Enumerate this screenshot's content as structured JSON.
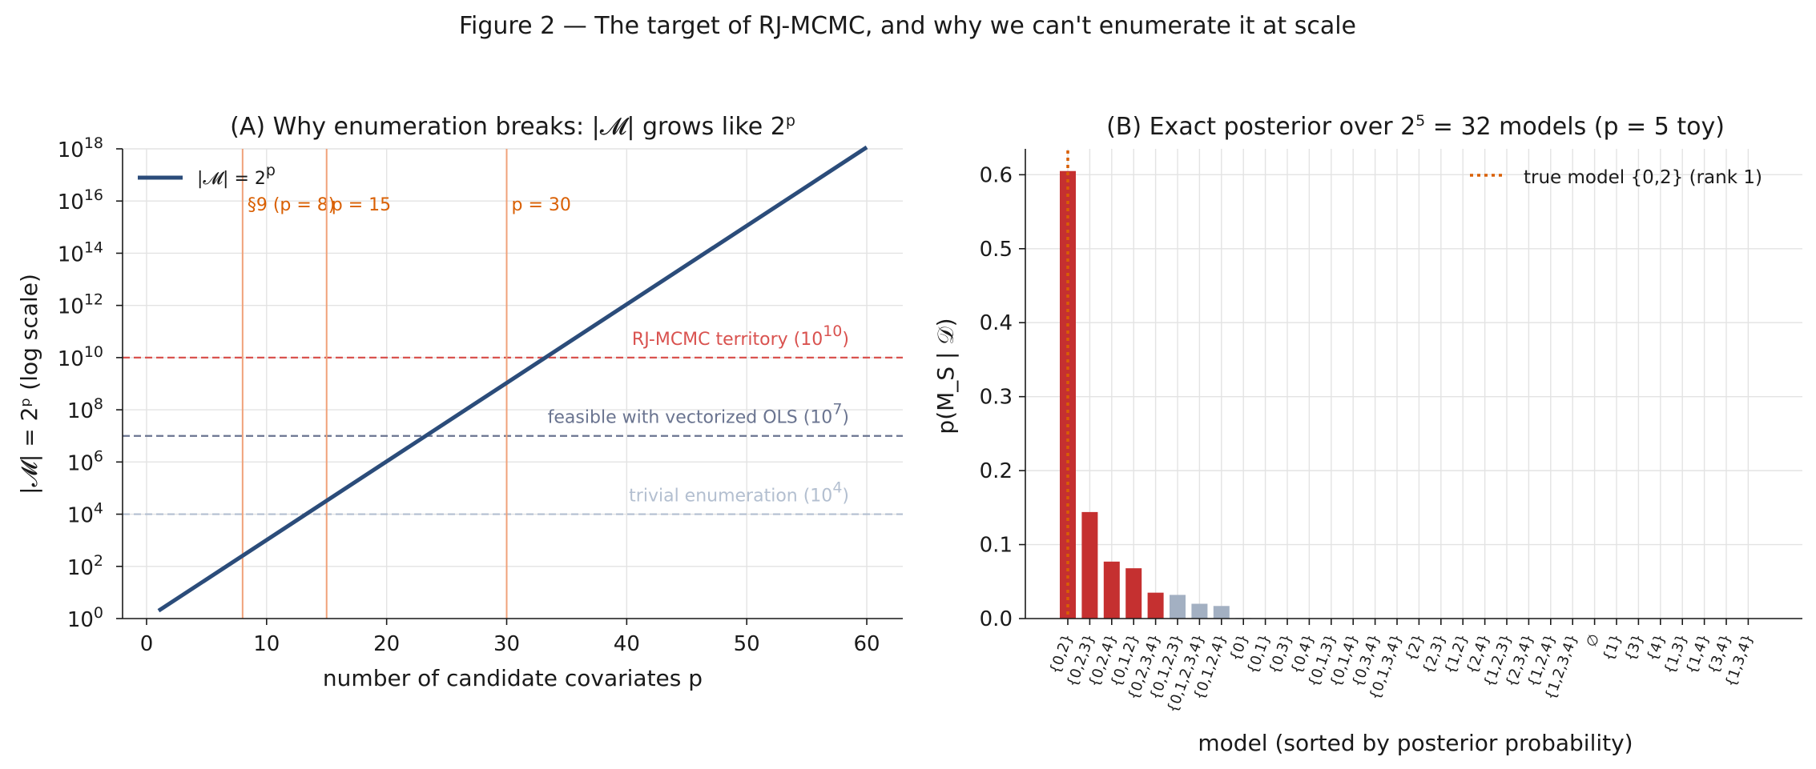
{
  "figure_title": "Figure 2 — The target of RJ-MCMC, and why we can't enumerate it at scale",
  "colors": {
    "line": "#2b4c7a",
    "vline": "#f0a27a",
    "vlabel": "#d95f02",
    "rjmcmc": "#d9524f",
    "ols": "#6a7490",
    "trivial": "#b3bfd0",
    "bar_top": "#c53030",
    "bar_rest": "#a3b0c2",
    "true_marker": "#d95f02"
  },
  "chart_data": [
    {
      "type": "line",
      "title": "(A) Why enumeration breaks: |𝓜| grows like 2",
      "title_sup": "p",
      "xlabel": "number of candidate covariates p",
      "ylabel": "|𝓜| = 2ᵖ  (log scale)",
      "yscale": "log",
      "xlim": [
        -2,
        63
      ],
      "ylim_exp": [
        0,
        18
      ],
      "xticks": [
        0,
        10,
        20,
        30,
        40,
        50,
        60
      ],
      "yticks_exp": [
        0,
        2,
        4,
        6,
        8,
        10,
        12,
        14,
        16,
        18
      ],
      "ytick_base": "10",
      "grid": true,
      "legend": "top-left",
      "series": [
        {
          "name": "|𝓜| = 2",
          "name_sup": "p",
          "x_range": [
            1,
            60
          ],
          "base": 2
        }
      ],
      "vlines": [
        {
          "x": 8,
          "label": "§9 (p = 8)"
        },
        {
          "x": 15,
          "label": "p = 15"
        },
        {
          "x": 30,
          "label": "p = 30"
        }
      ],
      "hlines": [
        {
          "exp": 10,
          "label": "RJ-MCMC territory (10",
          "label_sup": "10",
          "label_end": ")",
          "color_key": "rjmcmc"
        },
        {
          "exp": 7,
          "label": "feasible with vectorized OLS (10",
          "label_sup": "7",
          "label_end": ")",
          "color_key": "ols"
        },
        {
          "exp": 4,
          "label": "trivial enumeration (10",
          "label_sup": "4",
          "label_end": ")",
          "color_key": "trivial"
        }
      ]
    },
    {
      "type": "bar",
      "title": "(B) Exact posterior over 2",
      "title_sup": "5",
      "title_end": " = 32 models (p = 5 toy)",
      "xlabel": "model (sorted by posterior probability)",
      "ylabel": "p(M_S | 𝒟)",
      "ylim": [
        0,
        0.635
      ],
      "yticks": [
        0.0,
        0.1,
        0.2,
        0.3,
        0.4,
        0.5,
        0.6
      ],
      "grid": true,
      "legend": "top-right",
      "legend_label": "true model {0,2} (rank 1)",
      "top_highlight_count": 5,
      "true_model_index": 0,
      "categories": [
        "{0,2}",
        "{0,2,3}",
        "{0,2,4}",
        "{0,1,2}",
        "{0,2,3,4}",
        "{0,1,2,3}",
        "{0,1,2,3,4}",
        "{0,1,2,4}",
        "{0}",
        "{0,1}",
        "{0,3}",
        "{0,4}",
        "{0,1,3}",
        "{0,1,4}",
        "{0,3,4}",
        "{0,1,3,4}",
        "{2}",
        "{2,3}",
        "{1,2}",
        "{2,4}",
        "{1,2,3}",
        "{2,3,4}",
        "{1,2,4}",
        "{1,2,3,4}",
        "∅",
        "{1}",
        "{3}",
        "{4}",
        "{1,3}",
        "{1,4}",
        "{3,4}",
        "{1,3,4}"
      ],
      "values": [
        0.605,
        0.144,
        0.077,
        0.068,
        0.035,
        0.032,
        0.02,
        0.017,
        0.0008,
        0.0005,
        0.0004,
        0.0003,
        0.0002,
        0.0002,
        0.0001,
        0.0001,
        0.0001,
        0.0001,
        0.0001,
        0.0001,
        0.0001,
        0.0001,
        0.0001,
        0.0001,
        0.0001,
        0.0001,
        0.0001,
        0.0001,
        0.0001,
        0.0001,
        0.0001,
        0.0001
      ]
    }
  ]
}
